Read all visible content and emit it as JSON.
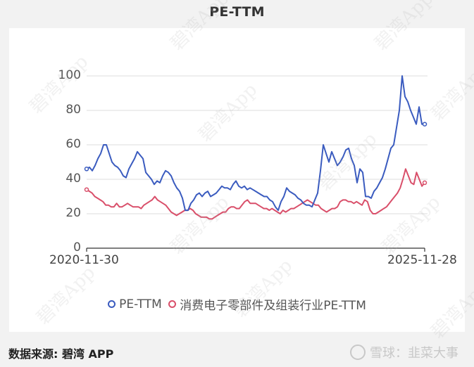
{
  "title": "PE-TTM",
  "footer": {
    "source": "数据来源: 碧湾 APP",
    "brand": "雪球：韭菜大事"
  },
  "watermark_text": "碧湾App",
  "legend": [
    {
      "label": "PE-TTM",
      "color": "#3a5bbf"
    },
    {
      "label": "消费电子零部件及组装行业PE-TTM",
      "color": "#d94f6a"
    }
  ],
  "chart_data": {
    "type": "line",
    "title": "PE-TTM",
    "xlabel": "",
    "ylabel": "",
    "ylim": [
      0,
      100
    ],
    "yticks": [
      0,
      20,
      40,
      60,
      80,
      100
    ],
    "x_tick_labels": [
      "2020-11-30",
      "2025-11-28"
    ],
    "x_range": [
      "2020-11-30",
      "2025-11-28"
    ],
    "grid": true,
    "legend_position": "bottom",
    "series": [
      {
        "name": "PE-TTM",
        "color": "#3a5bbf",
        "values": [
          46,
          47,
          45,
          48,
          52,
          55,
          60,
          60,
          55,
          50,
          48,
          47,
          45,
          42,
          41,
          46,
          49,
          52,
          56,
          54,
          52,
          44,
          42,
          40,
          37,
          39,
          38,
          42,
          45,
          44,
          42,
          38,
          35,
          33,
          29,
          22,
          22,
          26,
          28,
          31,
          32,
          30,
          32,
          33,
          30,
          31,
          32,
          34,
          36,
          35,
          35,
          34,
          37,
          39,
          36,
          35,
          36,
          34,
          35,
          34,
          33,
          32,
          31,
          30,
          30,
          28,
          27,
          24,
          22,
          27,
          30,
          35,
          33,
          32,
          31,
          29,
          28,
          26,
          25,
          25,
          24,
          28,
          32,
          45,
          60,
          55,
          50,
          56,
          52,
          48,
          50,
          53,
          57,
          58,
          52,
          48,
          38,
          46,
          44,
          30,
          30,
          29,
          33,
          35,
          38,
          41,
          46,
          52,
          58,
          60,
          70,
          80,
          100,
          88,
          85,
          80,
          76,
          72,
          82,
          72,
          72
        ]
      },
      {
        "name": "消费电子零部件及组装行业PE-TTM",
        "color": "#d94f6a",
        "values": [
          34,
          33,
          32,
          30,
          29,
          28,
          27,
          25,
          25,
          24,
          24,
          26,
          24,
          24,
          25,
          26,
          25,
          24,
          24,
          24,
          23,
          25,
          26,
          27,
          28,
          30,
          28,
          27,
          26,
          25,
          23,
          21,
          20,
          19,
          20,
          21,
          22,
          22,
          23,
          22,
          20,
          19,
          18,
          18,
          18,
          17,
          17,
          18,
          19,
          20,
          21,
          21,
          23,
          24,
          24,
          23,
          23,
          25,
          27,
          28,
          26,
          26,
          26,
          25,
          24,
          23,
          23,
          22,
          23,
          22,
          21,
          20,
          22,
          21,
          22,
          23,
          23,
          24,
          25,
          26,
          27,
          28,
          27,
          26,
          25,
          25,
          23,
          22,
          21,
          22,
          23,
          23,
          24,
          27,
          28,
          28,
          27,
          27,
          26,
          27,
          26,
          25,
          28,
          27,
          22,
          20,
          20,
          21,
          22,
          23,
          24,
          26,
          28,
          30,
          32,
          35,
          40,
          46,
          42,
          38,
          37,
          44,
          40,
          36,
          38
        ]
      }
    ]
  }
}
